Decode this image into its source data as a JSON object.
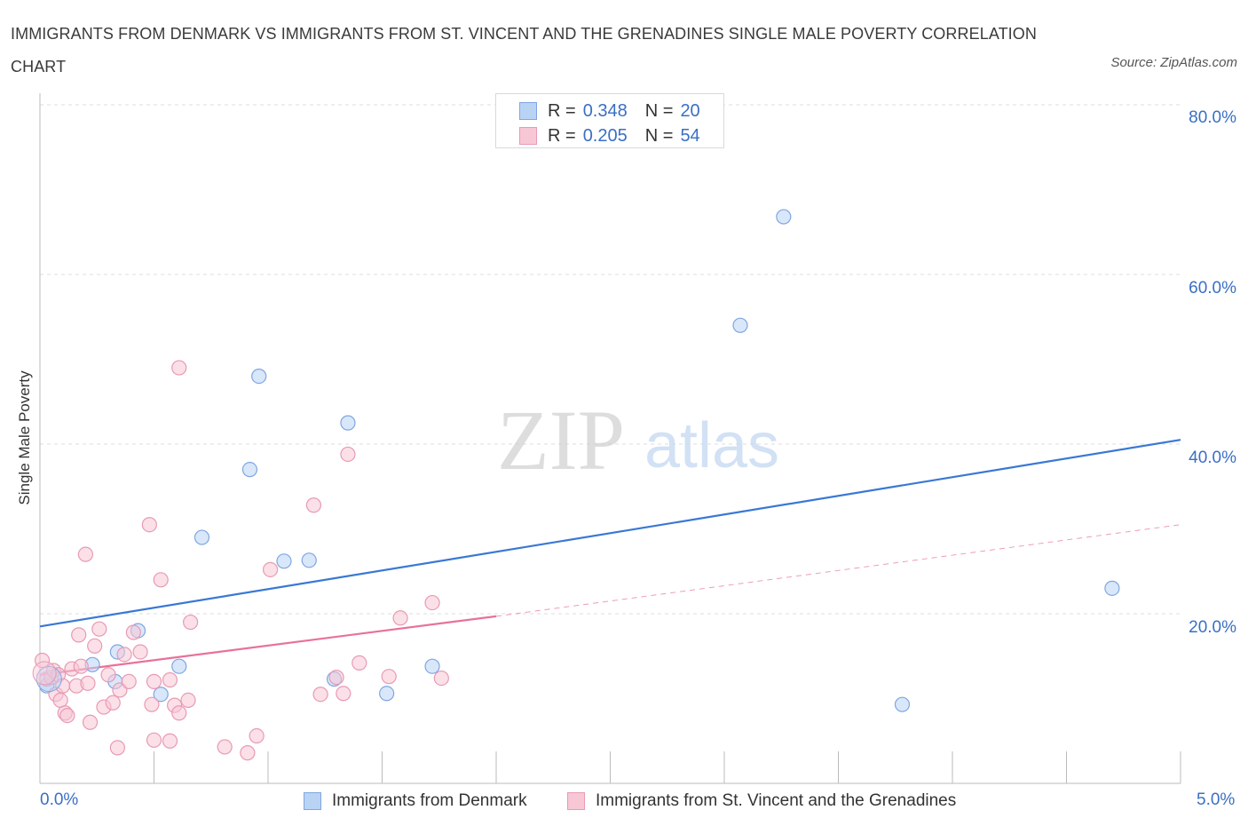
{
  "title": "IMMIGRANTS FROM DENMARK VS IMMIGRANTS FROM ST. VINCENT AND THE GRENADINES SINGLE MALE POVERTY CORRELATION CHART",
  "source": "Source: ZipAtlas.com",
  "watermark": {
    "zip": "ZIP",
    "atlas": "atlas"
  },
  "legend": {
    "r_label": "R =",
    "n_label": "N =",
    "rows": [
      {
        "r": "0.348",
        "n": "20",
        "fill": "#b9d3f5",
        "stroke": "#7fa6e0"
      },
      {
        "r": "0.205",
        "n": "54",
        "fill": "#f8c7d6",
        "stroke": "#e89ab3"
      }
    ]
  },
  "chart_data": {
    "type": "scatter",
    "title": "IMMIGRANTS FROM DENMARK VS IMMIGRANTS FROM ST. VINCENT AND THE GRENADINES SINGLE MALE POVERTY CORRELATION CHART",
    "xlabel": "",
    "ylabel": "Single Male Poverty",
    "xlim": [
      0,
      5
    ],
    "ylim": [
      0,
      80
    ],
    "x_tick_labels": [
      "0.0%",
      "5.0%"
    ],
    "y_tick_labels": [
      "20.0%",
      "40.0%",
      "60.0%",
      "80.0%"
    ],
    "y_ticks": [
      20,
      40,
      60,
      80
    ],
    "grid": true,
    "series": [
      {
        "name": "Immigrants from Denmark",
        "color": "#3a78d4",
        "fill": "#b9d3f5",
        "stroke": "#7fa6e0",
        "points": [
          [
            0.03,
            11.5
          ],
          [
            0.23,
            14.0
          ],
          [
            0.34,
            15.5
          ],
          [
            0.33,
            12.0
          ],
          [
            0.43,
            18.0
          ],
          [
            0.53,
            10.5
          ],
          [
            0.61,
            13.8
          ],
          [
            0.71,
            29.0
          ],
          [
            0.92,
            37.0
          ],
          [
            0.96,
            48.0
          ],
          [
            1.07,
            26.2
          ],
          [
            1.18,
            26.3
          ],
          [
            1.29,
            12.3
          ],
          [
            1.35,
            42.5
          ],
          [
            1.52,
            10.6
          ],
          [
            1.72,
            13.8
          ],
          [
            3.07,
            54.0
          ],
          [
            3.26,
            66.8
          ],
          [
            3.78,
            9.3
          ],
          [
            4.7,
            23.0
          ]
        ],
        "trend": {
          "x": [
            0,
            5
          ],
          "y": [
            18.5,
            40.5
          ],
          "dashed": false
        }
      },
      {
        "name": "Immigrants from St. Vincent and the Grenadines",
        "color": "#e8719a",
        "fill": "#f8c7d6",
        "stroke": "#e89ab3",
        "points": [
          [
            0.01,
            14.5
          ],
          [
            0.03,
            12.3
          ],
          [
            0.05,
            12.5
          ],
          [
            0.06,
            13.3
          ],
          [
            0.07,
            10.5
          ],
          [
            0.08,
            12.8
          ],
          [
            0.09,
            9.8
          ],
          [
            0.1,
            11.5
          ],
          [
            0.11,
            8.3
          ],
          [
            0.12,
            8.0
          ],
          [
            0.14,
            13.5
          ],
          [
            0.16,
            11.5
          ],
          [
            0.17,
            17.5
          ],
          [
            0.18,
            13.8
          ],
          [
            0.2,
            27.0
          ],
          [
            0.21,
            11.8
          ],
          [
            0.22,
            7.2
          ],
          [
            0.24,
            16.2
          ],
          [
            0.26,
            18.2
          ],
          [
            0.28,
            9.0
          ],
          [
            0.3,
            12.8
          ],
          [
            0.32,
            9.5
          ],
          [
            0.34,
            4.2
          ],
          [
            0.35,
            11.0
          ],
          [
            0.37,
            15.2
          ],
          [
            0.39,
            12.0
          ],
          [
            0.41,
            17.8
          ],
          [
            0.44,
            15.5
          ],
          [
            0.48,
            30.5
          ],
          [
            0.49,
            9.3
          ],
          [
            0.5,
            5.1
          ],
          [
            0.53,
            24.0
          ],
          [
            0.57,
            5.0
          ],
          [
            0.57,
            12.2
          ],
          [
            0.59,
            9.2
          ],
          [
            0.61,
            8.3
          ],
          [
            0.61,
            49.0
          ],
          [
            0.65,
            9.8
          ],
          [
            0.66,
            19.0
          ],
          [
            0.81,
            4.3
          ],
          [
            0.91,
            3.6
          ],
          [
            0.95,
            5.6
          ],
          [
            1.01,
            25.2
          ],
          [
            1.2,
            32.8
          ],
          [
            1.23,
            10.5
          ],
          [
            1.3,
            12.5
          ],
          [
            1.33,
            10.6
          ],
          [
            1.35,
            38.8
          ],
          [
            1.4,
            14.2
          ],
          [
            1.53,
            12.6
          ],
          [
            1.58,
            19.5
          ],
          [
            1.72,
            21.3
          ],
          [
            1.76,
            12.4
          ],
          [
            0.5,
            12.0
          ]
        ],
        "trend": {
          "x": [
            0,
            2
          ],
          "y": [
            12.8,
            19.7
          ],
          "dashed": false,
          "extension": {
            "x": [
              2,
              5
            ],
            "y": [
              19.7,
              30.5
            ],
            "dashed": true
          }
        }
      }
    ]
  }
}
